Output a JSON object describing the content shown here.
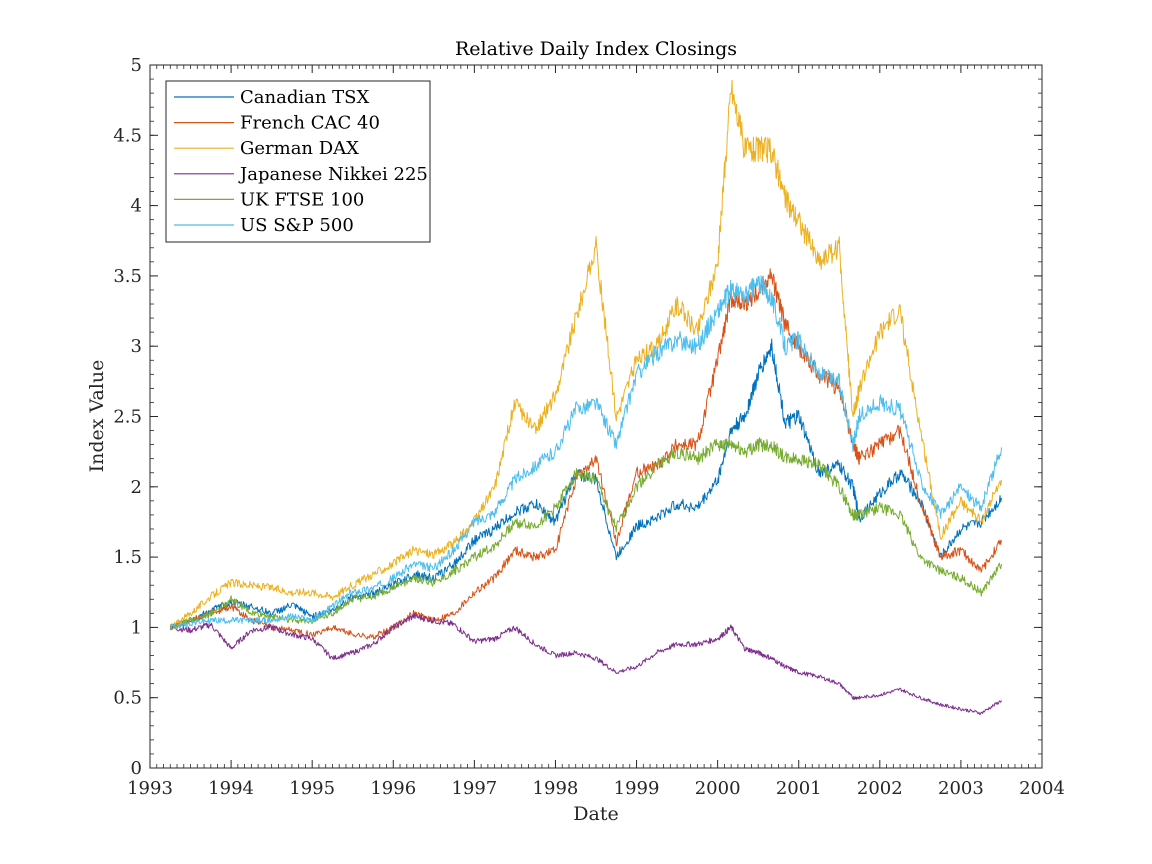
{
  "chart_data": {
    "type": "line",
    "title": "Relative Daily Index Closings",
    "xlabel": "Date",
    "ylabel": "Index Value",
    "xlim": [
      "1993-01-01",
      "2004-01-01"
    ],
    "ylim": [
      0,
      5
    ],
    "x_ticks": [
      "1993",
      "1994",
      "1995",
      "1996",
      "1997",
      "1998",
      "1999",
      "2000",
      "2001",
      "2002",
      "2003",
      "2004"
    ],
    "y_ticks": [
      "0",
      "0.5",
      "1",
      "1.5",
      "2",
      "2.5",
      "3",
      "3.5",
      "4",
      "4.5",
      "5"
    ],
    "grid": false,
    "legend_position": "top-left",
    "x": [
      "1993-04",
      "1993-07",
      "1993-10",
      "1994-01",
      "1994-04",
      "1994-07",
      "1994-10",
      "1995-01",
      "1995-04",
      "1995-07",
      "1995-10",
      "1996-01",
      "1996-04",
      "1996-07",
      "1996-10",
      "1997-01",
      "1997-04",
      "1997-07",
      "1997-10",
      "1998-01",
      "1998-04",
      "1998-07",
      "1998-10",
      "1999-01",
      "1999-04",
      "1999-07",
      "1999-10",
      "2000-01",
      "2000-03",
      "2000-05",
      "2000-07",
      "2000-09",
      "2000-11",
      "2001-01",
      "2001-04",
      "2001-07",
      "2001-09",
      "2001-10",
      "2002-01",
      "2002-04",
      "2002-07",
      "2002-10",
      "2003-01",
      "2003-04",
      "2003-07"
    ],
    "series": [
      {
        "name": "Canadian TSX",
        "color": "#0072BD",
        "values": [
          1.0,
          1.05,
          1.12,
          1.18,
          1.15,
          1.1,
          1.16,
          1.08,
          1.12,
          1.22,
          1.24,
          1.3,
          1.38,
          1.35,
          1.45,
          1.62,
          1.7,
          1.82,
          1.88,
          1.75,
          2.1,
          2.05,
          1.5,
          1.72,
          1.78,
          1.88,
          1.85,
          2.05,
          2.4,
          2.5,
          2.8,
          3.0,
          2.45,
          2.5,
          2.1,
          2.15,
          2.0,
          1.78,
          1.95,
          2.1,
          1.9,
          1.5,
          1.7,
          1.75,
          1.92
        ]
      },
      {
        "name": "French CAC 40",
        "color": "#D95319",
        "values": [
          1.0,
          1.05,
          1.1,
          1.15,
          1.05,
          1.0,
          0.98,
          0.95,
          1.0,
          0.95,
          0.93,
          1.0,
          1.1,
          1.05,
          1.1,
          1.25,
          1.35,
          1.55,
          1.5,
          1.55,
          2.05,
          2.2,
          1.6,
          2.1,
          2.15,
          2.3,
          2.3,
          2.9,
          3.35,
          3.3,
          3.4,
          3.5,
          3.15,
          3.0,
          2.8,
          2.7,
          2.3,
          2.2,
          2.3,
          2.4,
          1.9,
          1.5,
          1.55,
          1.4,
          1.62
        ]
      },
      {
        "name": "German DAX",
        "color": "#EDB120",
        "values": [
          1.0,
          1.1,
          1.22,
          1.32,
          1.3,
          1.28,
          1.25,
          1.25,
          1.22,
          1.3,
          1.38,
          1.45,
          1.55,
          1.52,
          1.6,
          1.75,
          2.0,
          2.6,
          2.4,
          2.65,
          3.2,
          3.7,
          2.5,
          2.9,
          3.0,
          3.3,
          3.1,
          3.6,
          4.85,
          4.4,
          4.4,
          4.4,
          4.05,
          3.9,
          3.6,
          3.7,
          2.5,
          2.7,
          3.1,
          3.25,
          2.4,
          1.65,
          1.9,
          1.75,
          2.05
        ]
      },
      {
        "name": "Japanese Nikkei 225",
        "color": "#7E2F8E",
        "values": [
          1.0,
          0.98,
          1.02,
          0.85,
          0.98,
          1.0,
          0.95,
          0.92,
          0.78,
          0.82,
          0.88,
          1.0,
          1.08,
          1.05,
          1.02,
          0.9,
          0.92,
          1.0,
          0.88,
          0.8,
          0.82,
          0.78,
          0.68,
          0.72,
          0.82,
          0.88,
          0.88,
          0.92,
          1.0,
          0.85,
          0.82,
          0.78,
          0.72,
          0.68,
          0.65,
          0.6,
          0.5,
          0.5,
          0.52,
          0.56,
          0.5,
          0.45,
          0.42,
          0.39,
          0.48
        ]
      },
      {
        "name": "UK FTSE 100",
        "color": "#77AC30",
        "values": [
          1.0,
          1.05,
          1.1,
          1.2,
          1.1,
          1.08,
          1.05,
          1.05,
          1.1,
          1.2,
          1.22,
          1.28,
          1.35,
          1.32,
          1.4,
          1.5,
          1.58,
          1.75,
          1.72,
          1.85,
          2.1,
          2.05,
          1.7,
          2.0,
          2.15,
          2.25,
          2.2,
          2.3,
          2.3,
          2.25,
          2.3,
          2.3,
          2.2,
          2.2,
          2.15,
          2.0,
          1.8,
          1.8,
          1.85,
          1.8,
          1.5,
          1.4,
          1.35,
          1.25,
          1.45
        ]
      },
      {
        "name": "US S&P 500",
        "color": "#4DBEEE",
        "values": [
          1.0,
          1.03,
          1.05,
          1.05,
          1.05,
          1.05,
          1.08,
          1.05,
          1.15,
          1.25,
          1.28,
          1.35,
          1.45,
          1.42,
          1.55,
          1.75,
          1.82,
          2.05,
          2.15,
          2.25,
          2.55,
          2.6,
          2.3,
          2.8,
          2.95,
          3.05,
          3.0,
          3.25,
          3.4,
          3.35,
          3.45,
          3.35,
          3.0,
          3.05,
          2.8,
          2.75,
          2.3,
          2.5,
          2.6,
          2.55,
          2.05,
          1.8,
          2.0,
          1.85,
          2.28
        ]
      }
    ]
  }
}
